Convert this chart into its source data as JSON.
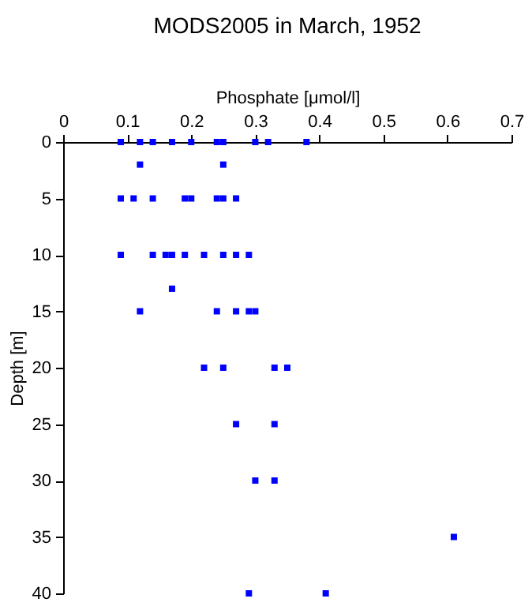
{
  "chart_data": {
    "type": "scatter",
    "title": "MODS2005 in March, 1952",
    "xlabel": "Phosphate [μmol/l]",
    "ylabel": "Depth [m]",
    "x": [
      0.09,
      0.12,
      0.14,
      0.17,
      0.2,
      0.24,
      0.25,
      0.3,
      0.32,
      0.38,
      0.12,
      0.25,
      0.09,
      0.11,
      0.14,
      0.19,
      0.2,
      0.24,
      0.25,
      0.27,
      0.09,
      0.14,
      0.16,
      0.17,
      0.19,
      0.22,
      0.25,
      0.27,
      0.29,
      0.17,
      0.12,
      0.24,
      0.27,
      0.29,
      0.3,
      0.22,
      0.25,
      0.33,
      0.35,
      0.27,
      0.33,
      0.3,
      0.33,
      0.61,
      0.29,
      0.41
    ],
    "series": [
      {
        "color": "#0000ff",
        "values": [
          0,
          0,
          0,
          0,
          0,
          0,
          0,
          0,
          0,
          0,
          2,
          2,
          5,
          5,
          5,
          5,
          5,
          5,
          5,
          5,
          10,
          10,
          10,
          10,
          10,
          10,
          10,
          10,
          10,
          13,
          15,
          15,
          15,
          15,
          15,
          20,
          20,
          20,
          20,
          25,
          25,
          30,
          30,
          35,
          40,
          40
        ]
      }
    ],
    "xlim": [
      0,
      0.7
    ],
    "xticks": [
      0,
      0.1,
      0.2,
      0.3,
      0.4,
      0.5,
      0.6,
      0.7
    ],
    "ylim": [
      40,
      0
    ],
    "yticks": [
      0,
      5,
      10,
      15,
      20,
      25,
      30,
      35,
      40
    ],
    "marker": "square",
    "grid": false,
    "legend": false
  }
}
